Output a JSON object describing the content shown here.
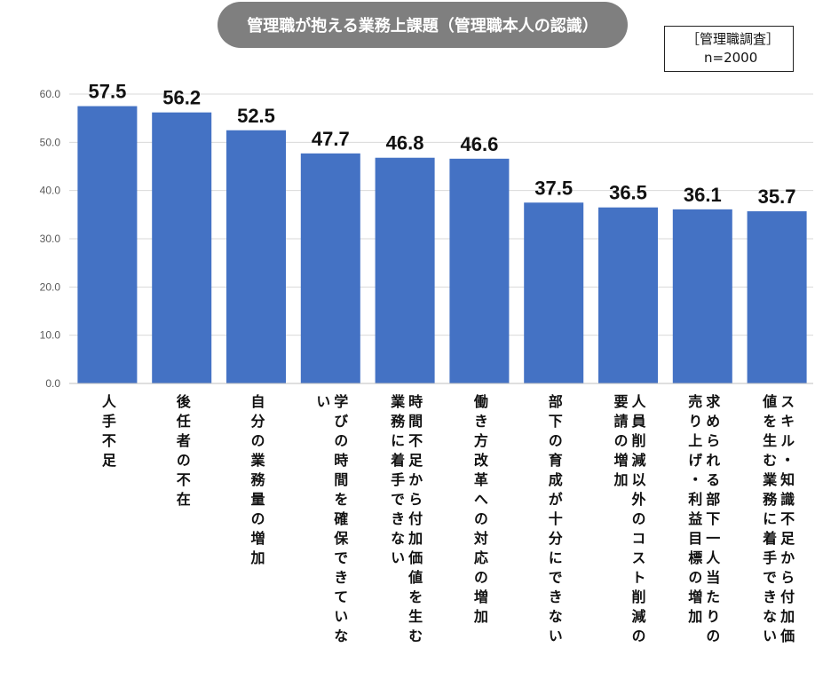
{
  "header": {
    "title": "管理職が抱える業務上課題（管理職本人の認識）",
    "note_line1": "［管理職調査］",
    "note_line2": "n=2000"
  },
  "colors": {
    "bar": "#4472c4",
    "grid": "#d9d9d9",
    "pill": "#7f7f7f"
  },
  "chart_data": {
    "type": "bar",
    "categories": [
      [
        "人手不足"
      ],
      [
        "後任者の不在"
      ],
      [
        "自分の業務量の増加"
      ],
      [
        "学びの時間を確保できていな",
        "い"
      ],
      [
        "時間不足から付加価値を生む",
        "業務に着手できない"
      ],
      [
        "働き方改革への対応の増加"
      ],
      [
        "部下の育成が十分にできない"
      ],
      [
        "人員削減以外のコスト削減の",
        "要請の増加"
      ],
      [
        "求められる部下一人当たりの",
        "売り上げ・利益目標の増加"
      ],
      [
        "スキル・知識不足から付加価",
        "値を生む業務に着手できない"
      ]
    ],
    "values": [
      57.5,
      56.2,
      52.5,
      47.7,
      46.8,
      46.6,
      37.5,
      36.5,
      36.1,
      35.7
    ],
    "data_labels": [
      "57.5",
      "56.2",
      "52.5",
      "47.7",
      "46.8",
      "46.6",
      "37.5",
      "36.5",
      "36.1",
      "35.7"
    ],
    "yticks": [
      "0.0",
      "10.0",
      "20.0",
      "30.0",
      "40.0",
      "50.0",
      "60.0"
    ],
    "ylim": [
      0,
      60
    ],
    "grid": true
  }
}
